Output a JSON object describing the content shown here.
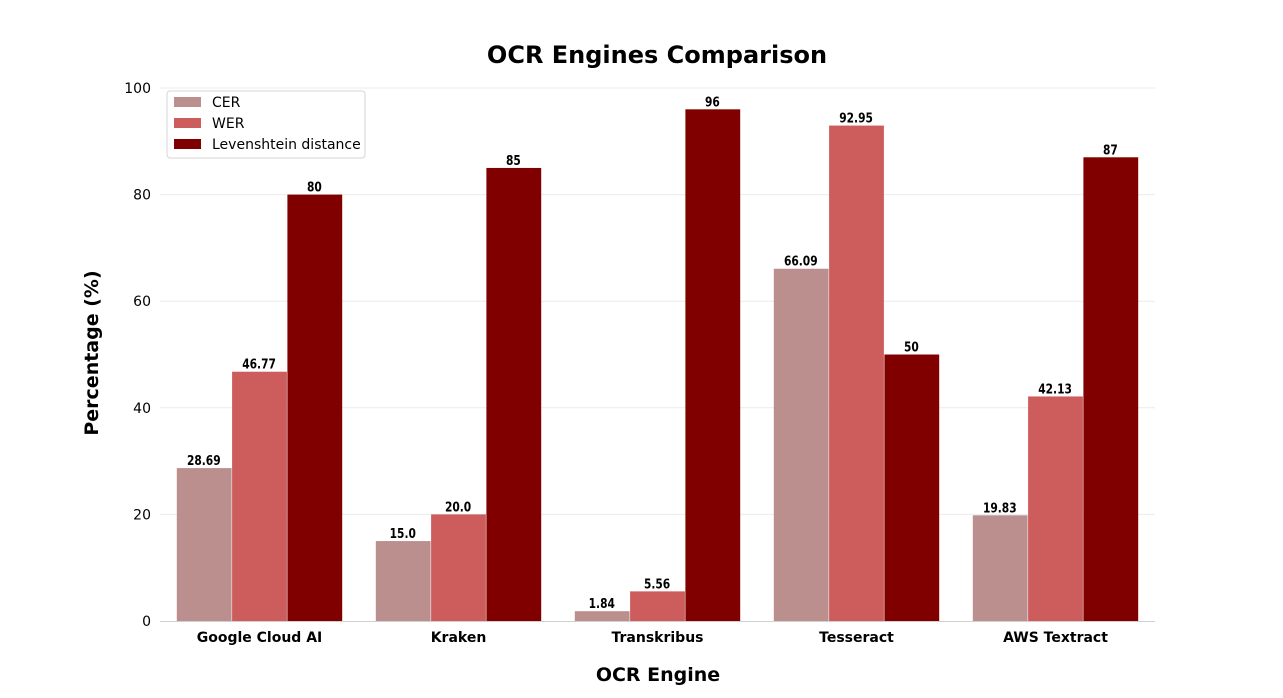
{
  "chart_data": {
    "type": "bar",
    "title": "OCR Engines Comparison",
    "xlabel": "OCR Engine",
    "ylabel": "Percentage (%)",
    "categories": [
      "Google Cloud AI",
      "Kraken",
      "Transkribus",
      "Tesseract",
      "AWS Textract"
    ],
    "series": [
      {
        "name": "CER",
        "color": "#bc8f8f",
        "values": [
          28.69,
          15.0,
          1.84,
          66.09,
          19.83
        ],
        "labels": [
          "28.69",
          "15.0",
          "1.84",
          "66.09",
          "19.83"
        ]
      },
      {
        "name": "WER",
        "color": "#cd5c5c",
        "values": [
          46.77,
          20.0,
          5.56,
          92.95,
          42.13
        ],
        "labels": [
          "46.77",
          "20.0",
          "5.56",
          "92.95",
          "42.13"
        ]
      },
      {
        "name": "Levenshtein distance",
        "color": "#800000",
        "values": [
          80,
          85,
          96,
          50,
          87
        ],
        "labels": [
          "80",
          "85",
          "96",
          "50",
          "87"
        ]
      }
    ],
    "ylim": [
      0,
      100
    ],
    "yticks": [
      0,
      20,
      40,
      60,
      80,
      100
    ],
    "ytick_labels": [
      "0",
      "20",
      "40",
      "60",
      "80",
      "100"
    ],
    "grid": true,
    "legend_position": "top-left"
  }
}
